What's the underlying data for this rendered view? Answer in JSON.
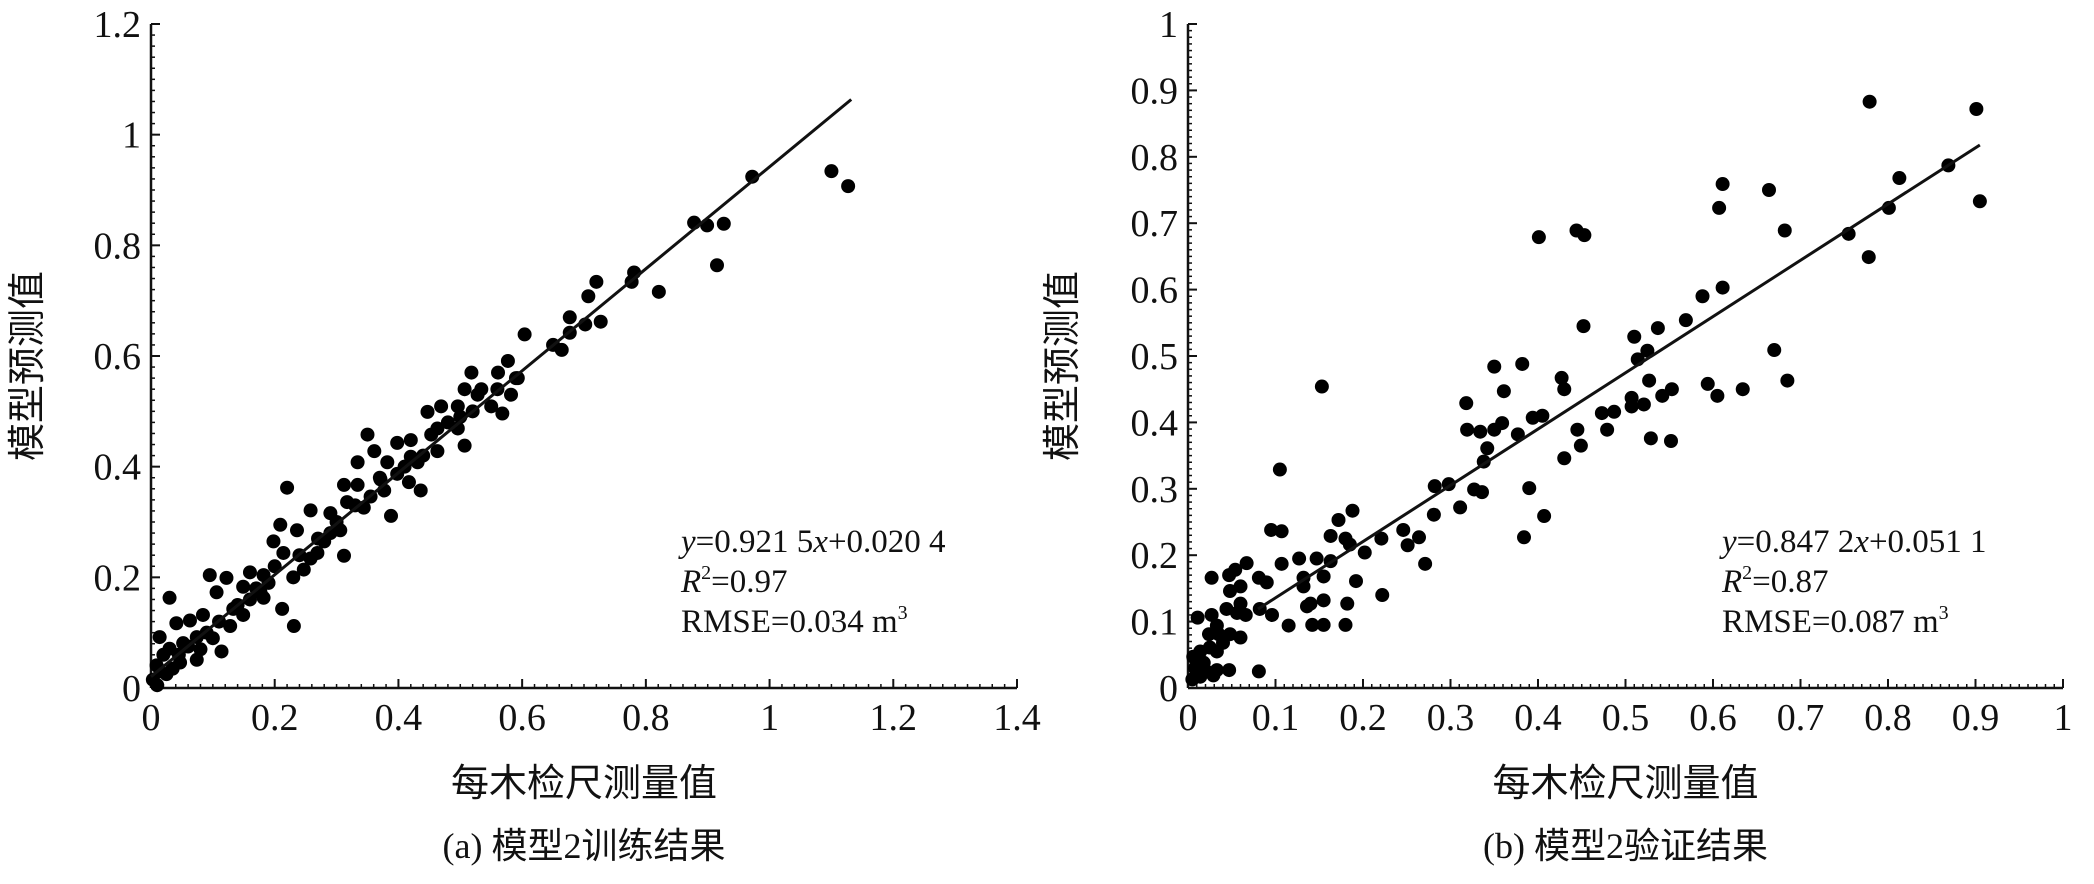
{
  "chart_data": [
    {
      "type": "scatter",
      "caption": "(a) 模型2训练结果",
      "xlabel": "每木检尺测量值",
      "ylabel": "模型预测值",
      "xlim": [
        0,
        1.4
      ],
      "ylim": [
        0,
        1.2
      ],
      "xticks": [
        "0",
        "0.2",
        "0.4",
        "0.6",
        "0.8",
        "1",
        "1.2",
        "1.4"
      ],
      "yticks": [
        "0",
        "0.2",
        "0.4",
        "0.6",
        "0.8",
        "1",
        "1.2"
      ],
      "fit": {
        "slope": 0.9215,
        "intercept": 0.0204,
        "x_range": [
          0,
          1.132
        ]
      },
      "annotation": {
        "equation": "=0.921 5",
        "eq_y": "y",
        "eq_x": "x",
        "eq_tail": "+0.020 4",
        "r2_label": "R",
        "r2_value": "=0.97",
        "rmse": "RMSE=0.034 m",
        "rmse_sup": "3"
      },
      "points": [
        [
          1.1,
          0.934
        ],
        [
          1.127,
          0.907
        ],
        [
          0.972,
          0.924
        ],
        [
          0.878,
          0.841
        ],
        [
          0.899,
          0.836
        ],
        [
          0.926,
          0.839
        ],
        [
          0.915,
          0.764
        ],
        [
          0.821,
          0.716
        ],
        [
          0.781,
          0.751
        ],
        [
          0.777,
          0.734
        ],
        [
          0.72,
          0.734
        ],
        [
          0.707,
          0.708
        ],
        [
          0.702,
          0.657
        ],
        [
          0.727,
          0.662
        ],
        [
          0.677,
          0.67
        ],
        [
          0.664,
          0.611
        ],
        [
          0.677,
          0.642
        ],
        [
          0.604,
          0.639
        ],
        [
          0.577,
          0.591
        ],
        [
          0.568,
          0.496
        ],
        [
          0.561,
          0.57
        ],
        [
          0.593,
          0.56
        ],
        [
          0.582,
          0.53
        ],
        [
          0.518,
          0.57
        ],
        [
          0.507,
          0.54
        ],
        [
          0.534,
          0.54
        ],
        [
          0.496,
          0.509
        ],
        [
          0.507,
          0.438
        ],
        [
          0.469,
          0.509
        ],
        [
          0.447,
          0.499
        ],
        [
          0.496,
          0.469
        ],
        [
          0.463,
          0.428
        ],
        [
          0.453,
          0.458
        ],
        [
          0.42,
          0.448
        ],
        [
          0.398,
          0.443
        ],
        [
          0.431,
          0.408
        ],
        [
          0.436,
          0.357
        ],
        [
          0.417,
          0.372
        ],
        [
          0.382,
          0.408
        ],
        [
          0.35,
          0.458
        ],
        [
          0.361,
          0.428
        ],
        [
          0.334,
          0.408
        ],
        [
          0.334,
          0.367
        ],
        [
          0.344,
          0.326
        ],
        [
          0.371,
          0.377
        ],
        [
          0.388,
          0.311
        ],
        [
          0.312,
          0.367
        ],
        [
          0.317,
          0.336
        ],
        [
          0.29,
          0.316
        ],
        [
          0.258,
          0.321
        ],
        [
          0.312,
          0.239
        ],
        [
          0.306,
          0.285
        ],
        [
          0.28,
          0.265
        ],
        [
          0.258,
          0.234
        ],
        [
          0.236,
          0.285
        ],
        [
          0.22,
          0.362
        ],
        [
          0.209,
          0.295
        ],
        [
          0.198,
          0.265
        ],
        [
          0.214,
          0.244
        ],
        [
          0.231,
          0.112
        ],
        [
          0.212,
          0.143
        ],
        [
          0.182,
          0.204
        ],
        [
          0.177,
          0.173
        ],
        [
          0.16,
          0.209
        ],
        [
          0.149,
          0.183
        ],
        [
          0.122,
          0.199
        ],
        [
          0.095,
          0.204
        ],
        [
          0.106,
          0.173
        ],
        [
          0.133,
          0.143
        ],
        [
          0.084,
          0.132
        ],
        [
          0.114,
          0.066
        ],
        [
          0.074,
          0.051
        ],
        [
          0.03,
          0.163
        ],
        [
          0.041,
          0.117
        ],
        [
          0.063,
          0.122
        ],
        [
          0.052,
          0.081
        ],
        [
          0.03,
          0.071
        ],
        [
          0.014,
          0.092
        ],
        [
          0.009,
          0.041
        ],
        [
          0.025,
          0.025
        ],
        [
          0.047,
          0.046
        ],
        [
          0.003,
          0.015
        ],
        [
          0.074,
          0.092
        ],
        [
          0.128,
          0.112
        ],
        [
          0.149,
          0.132
        ],
        [
          0.182,
          0.163
        ],
        [
          0.247,
          0.214
        ],
        [
          0.269,
          0.244
        ],
        [
          0.355,
          0.346
        ],
        [
          0.398,
          0.387
        ],
        [
          0.463,
          0.469
        ],
        [
          0.528,
          0.53
        ],
        [
          0.55,
          0.509
        ],
        [
          0.377,
          0.357
        ],
        [
          0.42,
          0.418
        ],
        [
          0.02,
          0.06
        ],
        [
          0.035,
          0.035
        ],
        [
          0.06,
          0.075
        ],
        [
          0.09,
          0.1
        ],
        [
          0.11,
          0.12
        ],
        [
          0.14,
          0.15
        ],
        [
          0.17,
          0.18
        ],
        [
          0.19,
          0.19
        ],
        [
          0.24,
          0.24
        ],
        [
          0.27,
          0.27
        ],
        [
          0.29,
          0.28
        ],
        [
          0.3,
          0.3
        ],
        [
          0.33,
          0.33
        ],
        [
          0.37,
          0.38
        ],
        [
          0.41,
          0.4
        ],
        [
          0.44,
          0.42
        ],
        [
          0.48,
          0.48
        ],
        [
          0.5,
          0.49
        ],
        [
          0.52,
          0.5
        ],
        [
          0.56,
          0.54
        ],
        [
          0.59,
          0.56
        ],
        [
          0.65,
          0.62
        ],
        [
          0.01,
          0.005
        ],
        [
          0.015,
          0.03
        ],
        [
          0.045,
          0.06
        ],
        [
          0.08,
          0.07
        ],
        [
          0.1,
          0.09
        ],
        [
          0.16,
          0.16
        ],
        [
          0.2,
          0.22
        ],
        [
          0.23,
          0.2
        ]
      ]
    },
    {
      "type": "scatter",
      "caption": "(b) 模型2验证结果",
      "xlabel": "每木检尺测量值",
      "ylabel": "模型预测值",
      "xlim": [
        0,
        1
      ],
      "ylim": [
        0,
        1
      ],
      "xticks": [
        "0",
        "0.1",
        "0.2",
        "0.3",
        "0.4",
        "0.5",
        "0.6",
        "0.7",
        "0.8",
        "0.9",
        "1"
      ],
      "yticks": [
        "0",
        "0.1",
        "0.2",
        "0.3",
        "0.4",
        "0.5",
        "0.6",
        "0.7",
        "0.8",
        "0.9",
        "1"
      ],
      "fit": {
        "slope": 0.8472,
        "intercept": 0.0511,
        "x_range": [
          0.08,
          0.905
        ]
      },
      "annotation": {
        "equation": "=0.847 2",
        "eq_y": "y",
        "eq_x": "x",
        "eq_tail": "+0.051 1",
        "r2_label": "R",
        "r2_value": "=0.87",
        "rmse": "RMSE=0.087 m",
        "rmse_sup": "3"
      },
      "points": [
        [
          0.779,
          0.883
        ],
        [
          0.901,
          0.872
        ],
        [
          0.905,
          0.733
        ],
        [
          0.869,
          0.787
        ],
        [
          0.813,
          0.768
        ],
        [
          0.801,
          0.723
        ],
        [
          0.755,
          0.684
        ],
        [
          0.778,
          0.649
        ],
        [
          0.682,
          0.689
        ],
        [
          0.664,
          0.75
        ],
        [
          0.611,
          0.759
        ],
        [
          0.607,
          0.723
        ],
        [
          0.611,
          0.603
        ],
        [
          0.588,
          0.59
        ],
        [
          0.569,
          0.554
        ],
        [
          0.537,
          0.542
        ],
        [
          0.51,
          0.529
        ],
        [
          0.525,
          0.508
        ],
        [
          0.514,
          0.495
        ],
        [
          0.67,
          0.509
        ],
        [
          0.685,
          0.463
        ],
        [
          0.634,
          0.45
        ],
        [
          0.594,
          0.458
        ],
        [
          0.605,
          0.44
        ],
        [
          0.553,
          0.45
        ],
        [
          0.542,
          0.44
        ],
        [
          0.527,
          0.463
        ],
        [
          0.521,
          0.427
        ],
        [
          0.507,
          0.437
        ],
        [
          0.507,
          0.424
        ],
        [
          0.487,
          0.416
        ],
        [
          0.473,
          0.414
        ],
        [
          0.479,
          0.389
        ],
        [
          0.529,
          0.376
        ],
        [
          0.552,
          0.372
        ],
        [
          0.452,
          0.545
        ],
        [
          0.444,
          0.689
        ],
        [
          0.453,
          0.682
        ],
        [
          0.401,
          0.679
        ],
        [
          0.427,
          0.467
        ],
        [
          0.43,
          0.45
        ],
        [
          0.445,
          0.389
        ],
        [
          0.449,
          0.365
        ],
        [
          0.43,
          0.346
        ],
        [
          0.405,
          0.41
        ],
        [
          0.394,
          0.407
        ],
        [
          0.382,
          0.488
        ],
        [
          0.377,
          0.382
        ],
        [
          0.39,
          0.301
        ],
        [
          0.407,
          0.259
        ],
        [
          0.384,
          0.227
        ],
        [
          0.35,
          0.484
        ],
        [
          0.361,
          0.447
        ],
        [
          0.359,
          0.399
        ],
        [
          0.35,
          0.389
        ],
        [
          0.334,
          0.386
        ],
        [
          0.319,
          0.389
        ],
        [
          0.318,
          0.429
        ],
        [
          0.342,
          0.361
        ],
        [
          0.338,
          0.341
        ],
        [
          0.327,
          0.299
        ],
        [
          0.336,
          0.295
        ],
        [
          0.311,
          0.272
        ],
        [
          0.298,
          0.307
        ],
        [
          0.282,
          0.304
        ],
        [
          0.281,
          0.261
        ],
        [
          0.264,
          0.227
        ],
        [
          0.251,
          0.215
        ],
        [
          0.246,
          0.238
        ],
        [
          0.271,
          0.187
        ],
        [
          0.221,
          0.225
        ],
        [
          0.202,
          0.204
        ],
        [
          0.222,
          0.14
        ],
        [
          0.188,
          0.267
        ],
        [
          0.172,
          0.253
        ],
        [
          0.163,
          0.229
        ],
        [
          0.18,
          0.225
        ],
        [
          0.185,
          0.216
        ],
        [
          0.163,
          0.191
        ],
        [
          0.192,
          0.161
        ],
        [
          0.182,
          0.127
        ],
        [
          0.18,
          0.095
        ],
        [
          0.153,
          0.454
        ],
        [
          0.105,
          0.329
        ],
        [
          0.095,
          0.238
        ],
        [
          0.107,
          0.236
        ],
        [
          0.107,
          0.187
        ],
        [
          0.127,
          0.195
        ],
        [
          0.132,
          0.166
        ],
        [
          0.132,
          0.153
        ],
        [
          0.147,
          0.195
        ],
        [
          0.155,
          0.168
        ],
        [
          0.155,
          0.132
        ],
        [
          0.14,
          0.127
        ],
        [
          0.136,
          0.123
        ],
        [
          0.142,
          0.095
        ],
        [
          0.155,
          0.095
        ],
        [
          0.115,
          0.094
        ],
        [
          0.096,
          0.11
        ],
        [
          0.082,
          0.119
        ],
        [
          0.081,
          0.166
        ],
        [
          0.09,
          0.159
        ],
        [
          0.067,
          0.188
        ],
        [
          0.054,
          0.178
        ],
        [
          0.047,
          0.17
        ],
        [
          0.06,
          0.153
        ],
        [
          0.048,
          0.146
        ],
        [
          0.06,
          0.127
        ],
        [
          0.066,
          0.11
        ],
        [
          0.056,
          0.113
        ],
        [
          0.044,
          0.119
        ],
        [
          0.027,
          0.166
        ],
        [
          0.027,
          0.11
        ],
        [
          0.011,
          0.106
        ],
        [
          0.033,
          0.094
        ],
        [
          0.024,
          0.081
        ],
        [
          0.035,
          0.081
        ],
        [
          0.048,
          0.081
        ],
        [
          0.06,
          0.076
        ],
        [
          0.04,
          0.068
        ],
        [
          0.025,
          0.061
        ],
        [
          0.033,
          0.055
        ],
        [
          0.014,
          0.055
        ],
        [
          0.006,
          0.047
        ],
        [
          0.018,
          0.038
        ],
        [
          0.008,
          0.03
        ],
        [
          0.021,
          0.025
        ],
        [
          0.033,
          0.027
        ],
        [
          0.047,
          0.027
        ],
        [
          0.081,
          0.025
        ],
        [
          0.014,
          0.017
        ],
        [
          0.029,
          0.019
        ],
        [
          0.005,
          0.013
        ]
      ]
    }
  ]
}
